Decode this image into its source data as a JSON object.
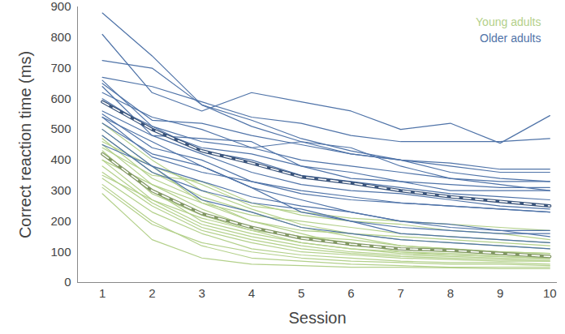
{
  "chart_data": {
    "type": "line",
    "x_label": "Session",
    "y_label": "Correct reaction time (ms)",
    "x": [
      1,
      2,
      3,
      4,
      5,
      6,
      7,
      8,
      9,
      10
    ],
    "xlim": [
      0.5,
      10.15
    ],
    "xticks": [
      1,
      2,
      3,
      4,
      5,
      6,
      7,
      8,
      9,
      10
    ],
    "ylim": [
      0,
      900
    ],
    "yticks": [
      0,
      100,
      200,
      300,
      400,
      500,
      600,
      700,
      800,
      900
    ],
    "grid": false,
    "legend": "top-right",
    "series": [
      {
        "name": "Young adults",
        "color": "#b3d08a",
        "line_style": "dashed",
        "values": [
          420,
          300,
          225,
          180,
          145,
          125,
          110,
          105,
          95,
          85
        ],
        "participants": [
          [
            520,
            400,
            300,
            240,
            190,
            160,
            140,
            130,
            120,
            110
          ],
          [
            500,
            380,
            260,
            200,
            170,
            160,
            150,
            140,
            130,
            120
          ],
          [
            480,
            360,
            280,
            230,
            180,
            150,
            120,
            110,
            100,
            95
          ],
          [
            470,
            340,
            270,
            200,
            160,
            120,
            110,
            100,
            95,
            90
          ],
          [
            450,
            320,
            240,
            180,
            150,
            130,
            100,
            95,
            90,
            85
          ],
          [
            430,
            290,
            220,
            170,
            130,
            110,
            100,
            90,
            85,
            80
          ],
          [
            420,
            300,
            200,
            160,
            130,
            110,
            95,
            90,
            85,
            80
          ],
          [
            400,
            270,
            190,
            150,
            120,
            100,
            90,
            85,
            80,
            75
          ],
          [
            380,
            260,
            180,
            140,
            110,
            95,
            85,
            80,
            75,
            70
          ],
          [
            360,
            250,
            170,
            130,
            100,
            90,
            80,
            75,
            70,
            70
          ],
          [
            340,
            230,
            160,
            110,
            90,
            80,
            70,
            65,
            65,
            60
          ],
          [
            310,
            190,
            130,
            100,
            80,
            70,
            65,
            60,
            60,
            55
          ],
          [
            290,
            140,
            80,
            60,
            55,
            50,
            50,
            48,
            45,
            45
          ],
          [
            320,
            200,
            120,
            80,
            70,
            60,
            55,
            50,
            50,
            50
          ],
          [
            440,
            350,
            330,
            260,
            220,
            200,
            190,
            170,
            160,
            140
          ],
          [
            460,
            380,
            320,
            250,
            230,
            210,
            200,
            190,
            180,
            170
          ],
          [
            400,
            320,
            260,
            220,
            200,
            180,
            160,
            150,
            140,
            130
          ],
          [
            350,
            270,
            210,
            170,
            150,
            140,
            120,
            110,
            100,
            95
          ]
        ]
      },
      {
        "name": "Older adults",
        "color": "#4f73a8",
        "line_style": "dashed",
        "values": [
          590,
          500,
          430,
          390,
          345,
          325,
          300,
          280,
          265,
          250
        ],
        "participants": [
          [
            880,
            740,
            580,
            530,
            470,
            430,
            400,
            390,
            370,
            370
          ],
          [
            810,
            620,
            560,
            620,
            590,
            560,
            500,
            520,
            455,
            545
          ],
          [
            725,
            700,
            580,
            510,
            460,
            440,
            380,
            340,
            330,
            330
          ],
          [
            670,
            640,
            590,
            540,
            520,
            480,
            460,
            460,
            460,
            470
          ],
          [
            650,
            530,
            520,
            480,
            450,
            420,
            400,
            380,
            360,
            360
          ],
          [
            660,
            510,
            460,
            440,
            460,
            420,
            400,
            360,
            340,
            330
          ],
          [
            600,
            500,
            440,
            420,
            380,
            360,
            330,
            300,
            300,
            300
          ],
          [
            590,
            510,
            430,
            400,
            350,
            330,
            310,
            290,
            280,
            270
          ],
          [
            560,
            480,
            420,
            360,
            320,
            300,
            290,
            270,
            250,
            240
          ],
          [
            550,
            440,
            400,
            330,
            300,
            280,
            260,
            250,
            240,
            230
          ],
          [
            540,
            410,
            360,
            330,
            290,
            270,
            260,
            250,
            240,
            230
          ],
          [
            520,
            420,
            380,
            310,
            270,
            230,
            200,
            190,
            170,
            170
          ],
          [
            500,
            380,
            330,
            280,
            250,
            230,
            200,
            180,
            170,
            150
          ],
          [
            480,
            360,
            300,
            260,
            240,
            200,
            160,
            150,
            140,
            130
          ],
          [
            450,
            380,
            270,
            230,
            180,
            160,
            140,
            130,
            120,
            110
          ],
          [
            640,
            480,
            470,
            460,
            380,
            340,
            330,
            320,
            310,
            310
          ],
          [
            620,
            540,
            500,
            440,
            400,
            380,
            360,
            340,
            320,
            300
          ],
          [
            540,
            460,
            380,
            310,
            230,
            200,
            180,
            170,
            160,
            160
          ]
        ]
      }
    ]
  }
}
